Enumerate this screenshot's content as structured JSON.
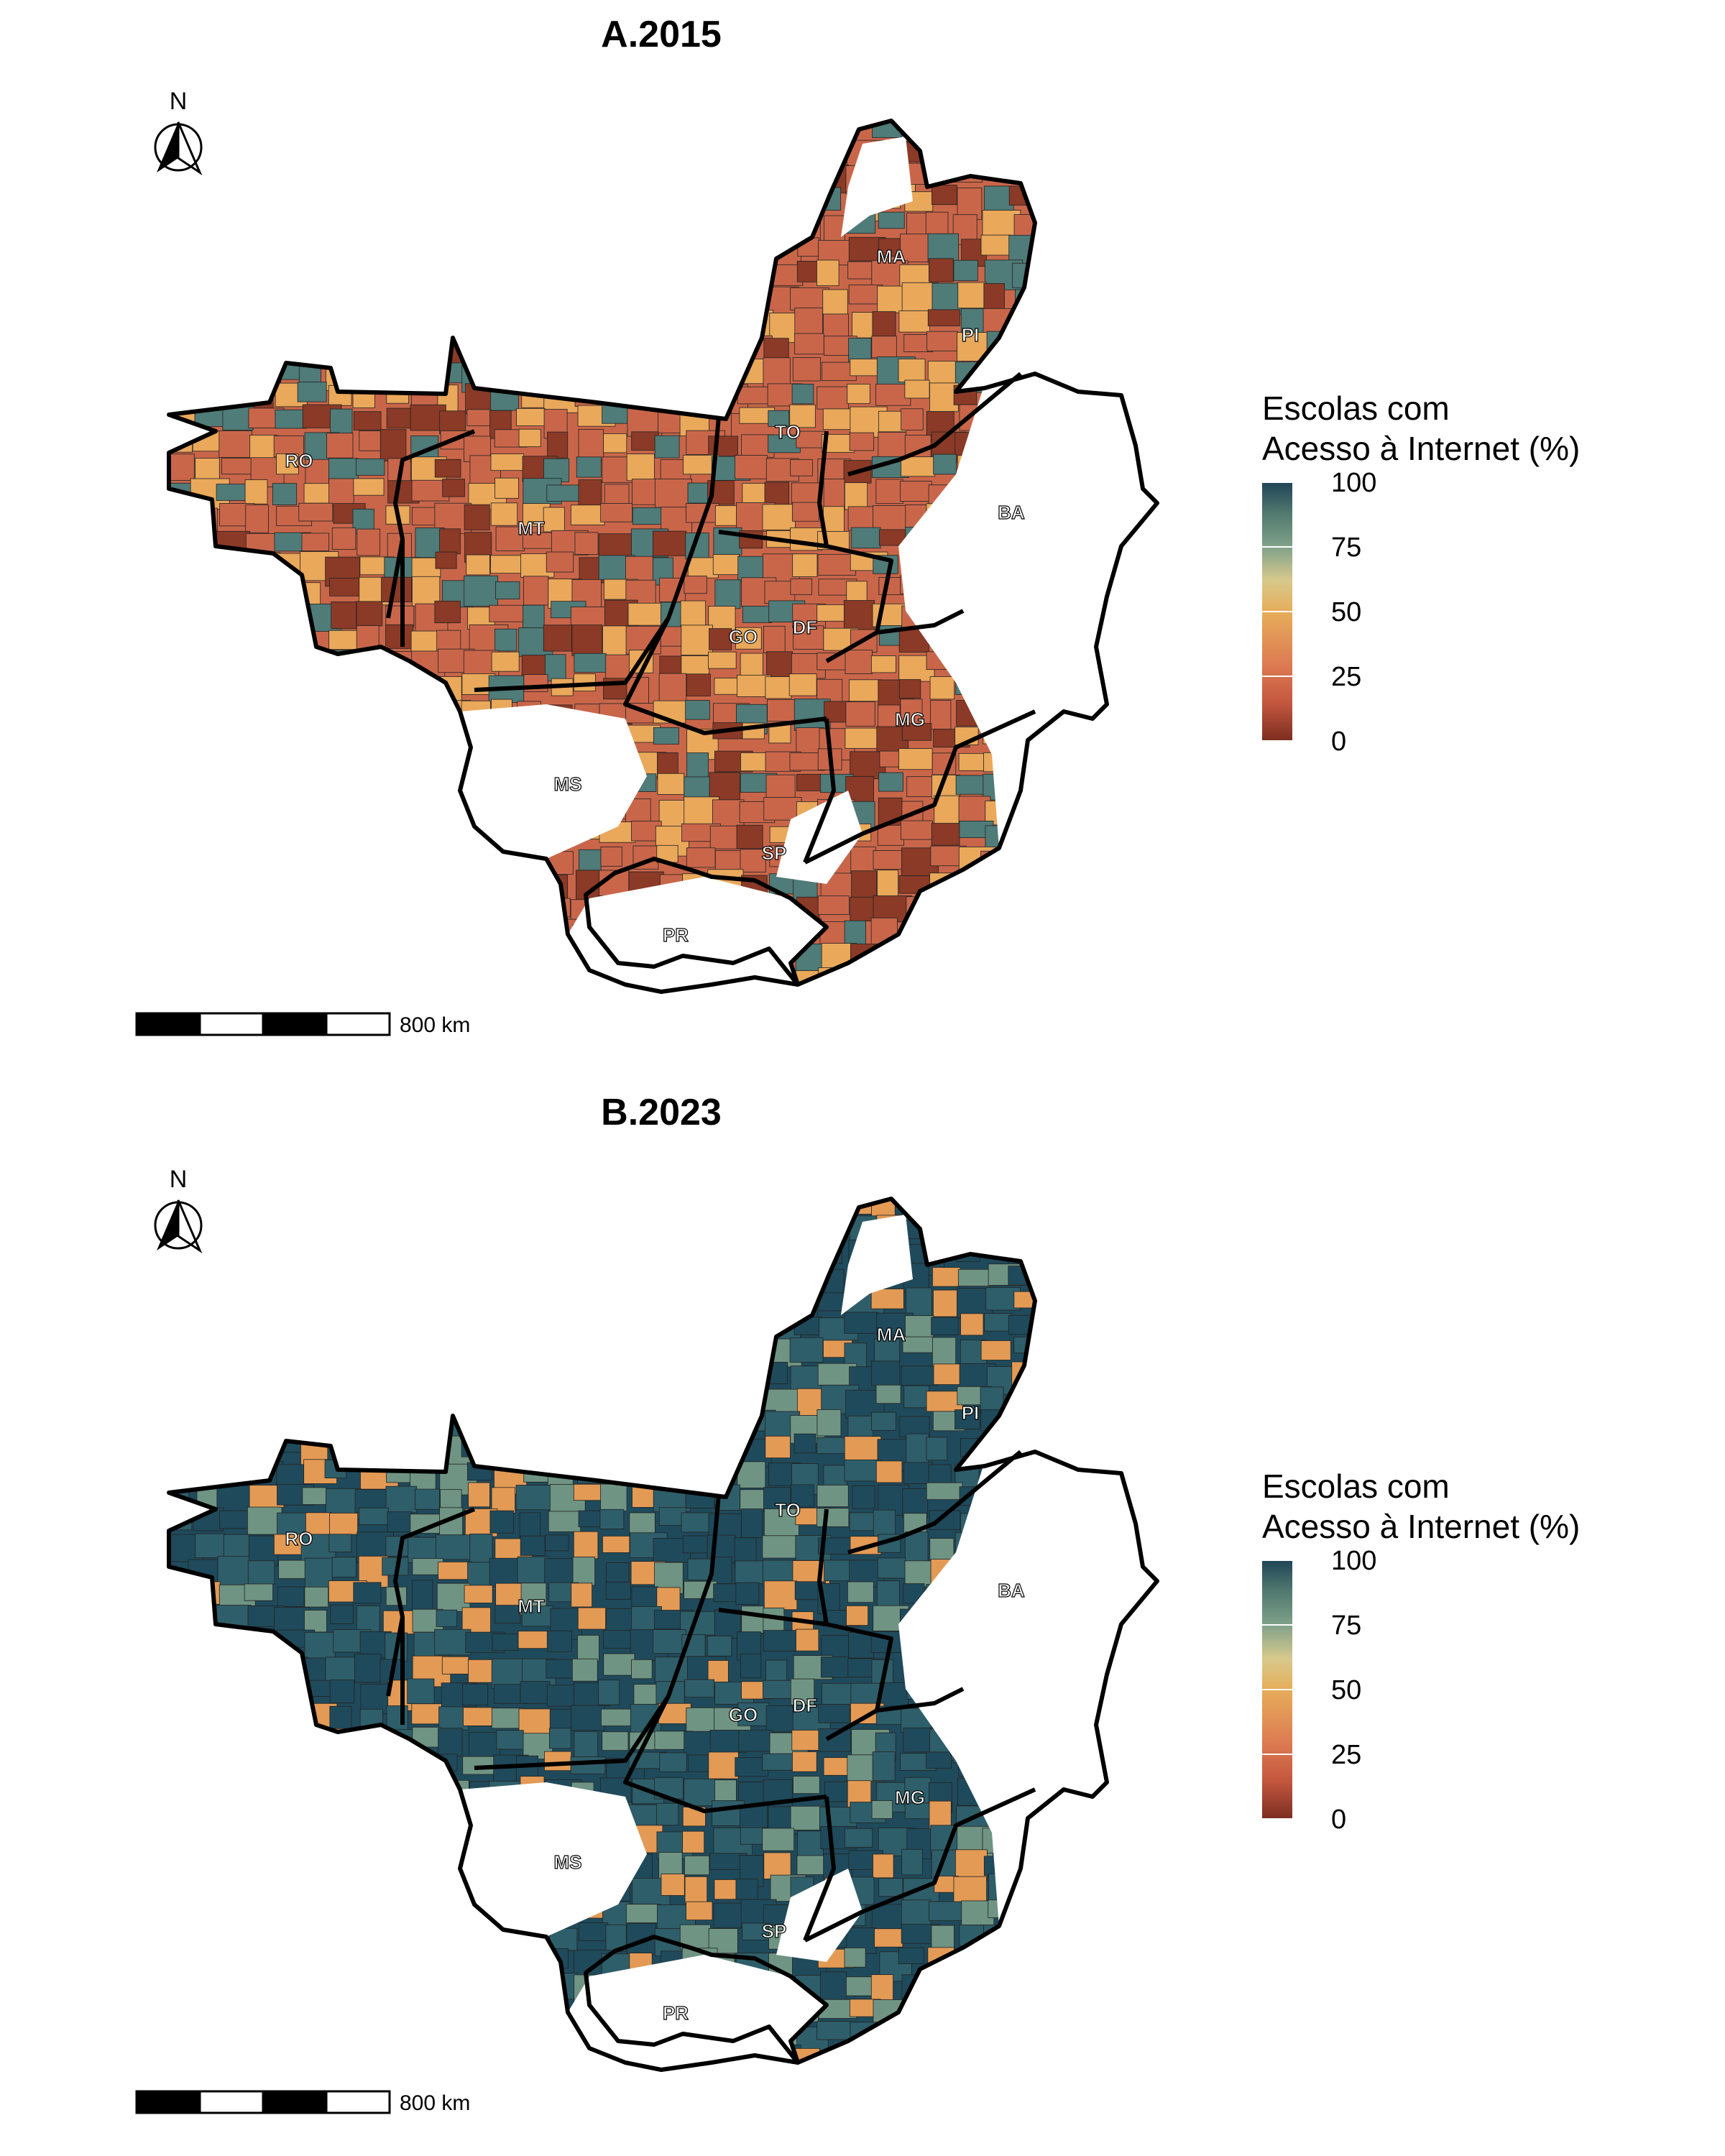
{
  "panels": [
    {
      "title": "A.2015",
      "legend_title_line1": "Escolas com",
      "legend_title_line2": "Acesso à Internet (%)",
      "dominant_fill": "#c9664a",
      "secondary_fill": "#e9a85a",
      "third_fill": "#4f7b78",
      "dark_fill": "#8a3a26",
      "north_label": "N",
      "scale_label": "800 km"
    },
    {
      "title": "B.2023",
      "legend_title_line1": "Escolas com",
      "legend_title_line2": "Acesso à Internet (%)",
      "dominant_fill": "#1f4a5b",
      "secondary_fill": "#2e5e6a",
      "third_fill": "#6f9483",
      "dark_fill": "#e39a55",
      "north_label": "N",
      "scale_label": "800 km"
    }
  ],
  "legend_ticks": [
    "100",
    "75",
    "50",
    "25",
    "0"
  ],
  "state_labels": [
    "MA",
    "PI",
    "RO",
    "TO",
    "BA",
    "MT",
    "GO",
    "DF",
    "MG",
    "MS",
    "SP",
    "PR"
  ],
  "colors": {
    "legend_high": "#1e4357",
    "legend_mid": "#e6ad5a",
    "legend_low": "#7a2d1f",
    "border": "#000000"
  }
}
